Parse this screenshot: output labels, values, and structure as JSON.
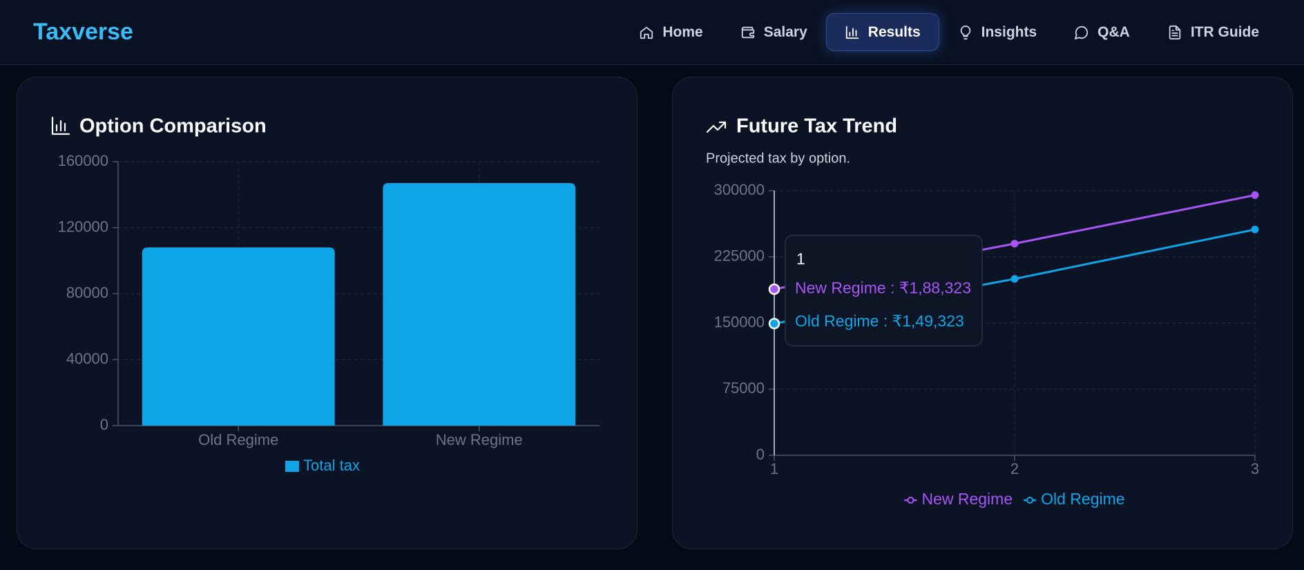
{
  "nav": {
    "brand": "Taxverse",
    "items": [
      "Home",
      "Salary",
      "Results",
      "Insights",
      "Q&A",
      "ITR Guide"
    ],
    "active": 2
  },
  "chart_data": [
    {
      "type": "bar",
      "title": "Option Comparison",
      "categories": [
        "Old Regime",
        "New Regime"
      ],
      "series": [
        {
          "name": "Total tax",
          "color": "#0ea5e9",
          "values": [
            108000,
            147000
          ]
        }
      ],
      "ylim": [
        0,
        160000
      ],
      "yticks": [
        0,
        40000,
        80000,
        120000,
        160000
      ],
      "grid": true
    },
    {
      "type": "line",
      "title": "Future Tax Trend",
      "subtitle": "Projected tax by option.",
      "x": [
        1,
        2,
        3
      ],
      "xlim": [
        1,
        3
      ],
      "xticks": [
        1,
        2,
        3
      ],
      "series": [
        {
          "name": "New Regime",
          "color": "#a855f7",
          "values": [
            188323,
            240000,
            295000
          ],
          "value_labels": [
            "₹1,88,323",
            null,
            null
          ]
        },
        {
          "name": "Old Regime",
          "color": "#0ea5e9",
          "values": [
            149323,
            200000,
            256000
          ],
          "value_labels": [
            "₹1,49,323",
            null,
            null
          ]
        }
      ],
      "tooltip_separator": " : ",
      "ylim": [
        0,
        300000
      ],
      "yticks": [
        0,
        75000,
        150000,
        225000,
        300000
      ],
      "grid": true
    }
  ]
}
